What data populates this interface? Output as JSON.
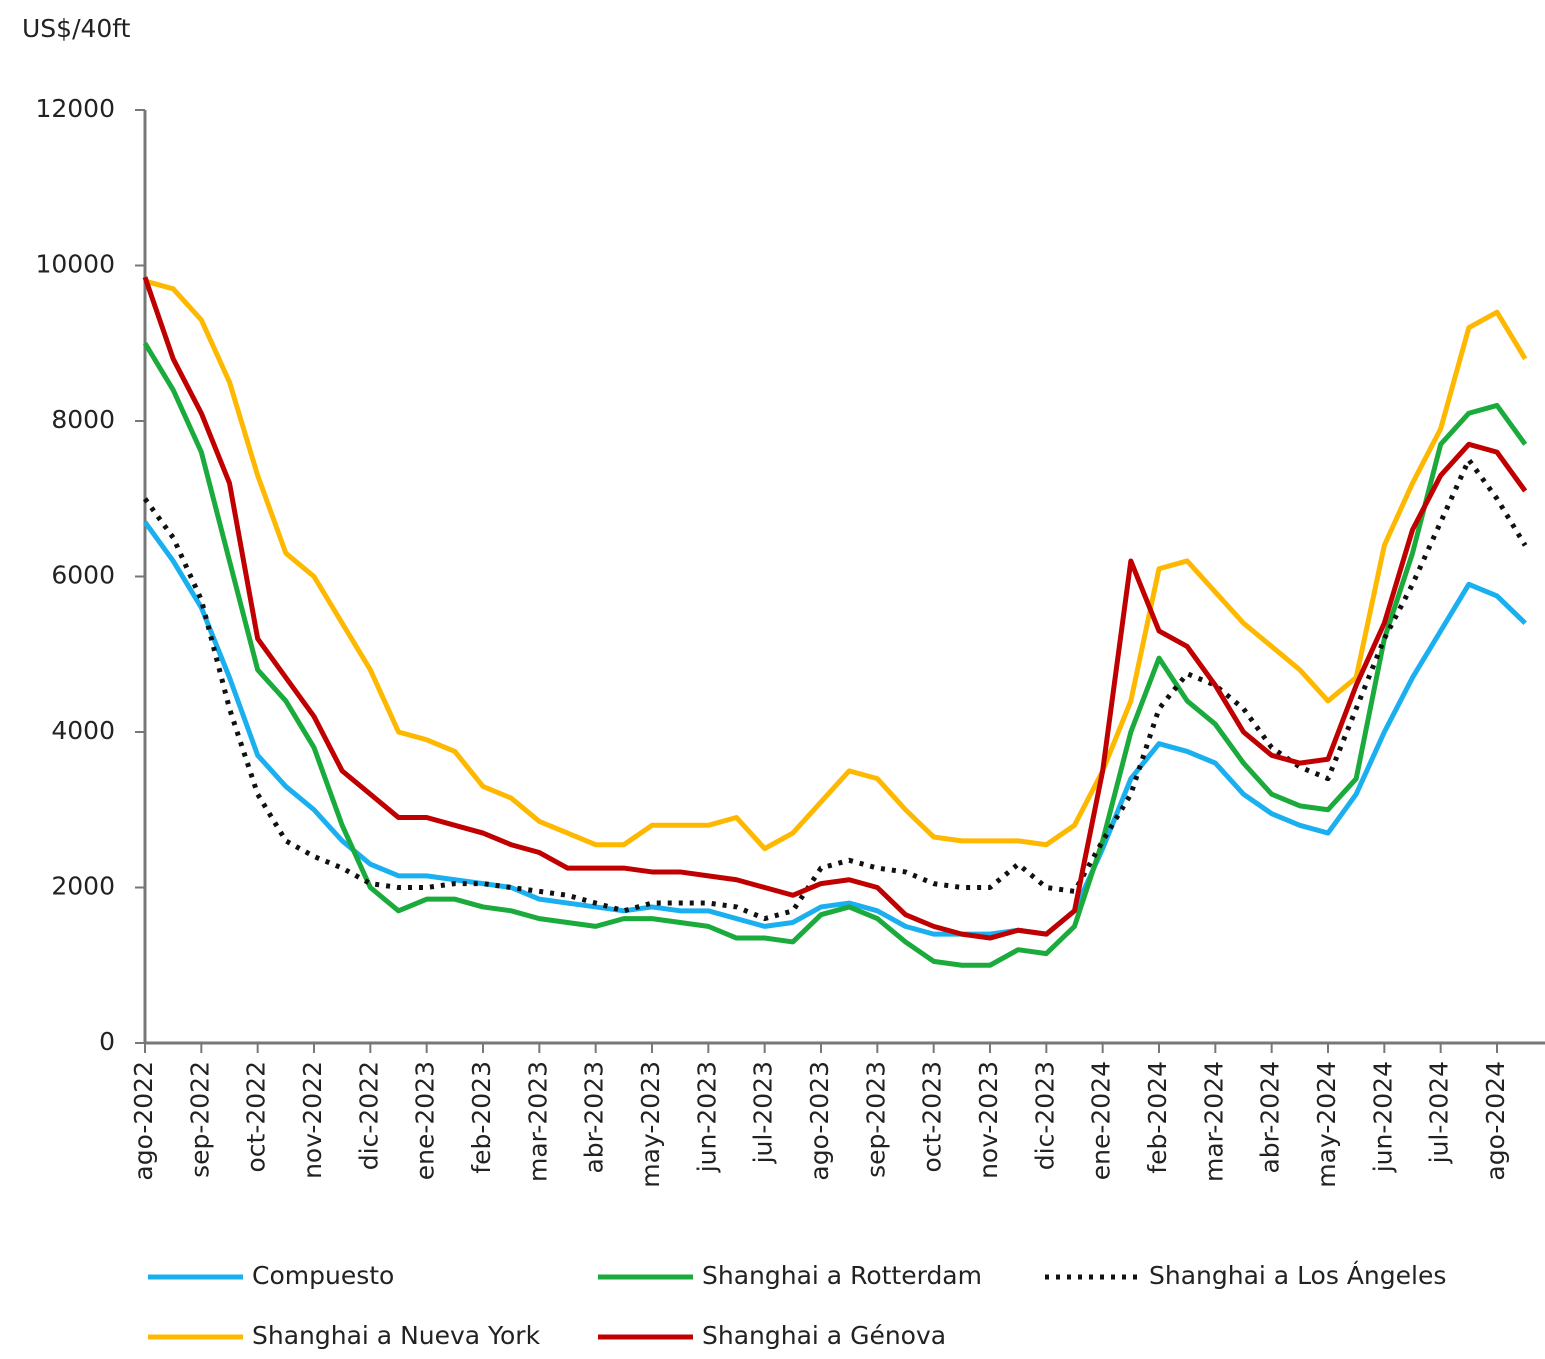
{
  "chart_data": {
    "type": "line",
    "ylabel": "US$/40ft",
    "categories": [
      "ago-2022",
      null,
      "sep-2022",
      null,
      "oct-2022",
      null,
      "nov-2022",
      null,
      "dic-2022",
      null,
      "ene-2023",
      null,
      "feb-2023",
      null,
      "mar-2023",
      null,
      "abr-2023",
      null,
      "may-2023",
      null,
      "jun-2023",
      null,
      "jul-2023",
      null,
      "ago-2023",
      null,
      "sep-2023",
      null,
      "oct-2023",
      null,
      "nov-2023",
      null,
      "dic-2023",
      null,
      "ene-2024",
      null,
      "feb-2024",
      null,
      "mar-2024",
      null,
      "abr-2024",
      null,
      "may-2024",
      null,
      "jun-2024",
      null,
      "jul-2024",
      null,
      "ago-2024",
      null
    ],
    "ylim": [
      0,
      12000
    ],
    "yticks": [
      0,
      2000,
      4000,
      6000,
      8000,
      10000,
      12000
    ],
    "grid": false,
    "series": [
      {
        "name": "Compuesto",
        "color": "#1ab0ef",
        "dashed": false,
        "values": [
          6700,
          6200,
          5600,
          4700,
          3700,
          3300,
          3000,
          2600,
          2300,
          2150,
          2150,
          2100,
          2050,
          2000,
          1850,
          1800,
          1750,
          1700,
          1750,
          1700,
          1700,
          1600,
          1500,
          1550,
          1750,
          1800,
          1700,
          1500,
          1400,
          1400,
          1400,
          1450,
          1400,
          1700,
          2500,
          3400,
          3850,
          3750,
          3600,
          3200,
          2950,
          2800,
          2700,
          3200,
          4000,
          4700,
          5300,
          5900,
          5750,
          5400
        ]
      },
      {
        "name": "Shanghai a Rotterdam",
        "color": "#1aab3c",
        "dashed": false,
        "values": [
          9000,
          8400,
          7600,
          6200,
          4800,
          4400,
          3800,
          2800,
          2000,
          1700,
          1850,
          1850,
          1750,
          1700,
          1600,
          1550,
          1500,
          1600,
          1600,
          1550,
          1500,
          1350,
          1350,
          1300,
          1650,
          1750,
          1600,
          1300,
          1050,
          1000,
          1000,
          1200,
          1150,
          1500,
          2600,
          4000,
          4950,
          4400,
          4100,
          3600,
          3200,
          3050,
          3000,
          3400,
          5200,
          6300,
          7700,
          8100,
          8200,
          7700
        ]
      },
      {
        "name": "Shanghai a Los Ángeles",
        "color": "#111111",
        "dashed": true,
        "values": [
          7000,
          6500,
          5700,
          4300,
          3200,
          2600,
          2400,
          2250,
          2050,
          2000,
          2000,
          2050,
          2050,
          2000,
          1950,
          1900,
          1800,
          1700,
          1800,
          1800,
          1800,
          1750,
          1600,
          1700,
          2250,
          2350,
          2250,
          2200,
          2050,
          2000,
          2000,
          2300,
          2000,
          1950,
          2600,
          3200,
          4300,
          4750,
          4600,
          4300,
          3800,
          3550,
          3400,
          4300,
          5200,
          5900,
          6700,
          7500,
          7000,
          6400
        ]
      },
      {
        "name": "Shanghai a Nueva York",
        "color": "#ffb800",
        "dashed": false,
        "values": [
          9800,
          9700,
          9300,
          8500,
          7300,
          6300,
          6000,
          5400,
          4800,
          4000,
          3900,
          3750,
          3300,
          3150,
          2850,
          2700,
          2550,
          2550,
          2800,
          2800,
          2800,
          2900,
          2500,
          2700,
          3100,
          3500,
          3400,
          3000,
          2650,
          2600,
          2600,
          2600,
          2550,
          2800,
          3500,
          4400,
          6100,
          6200,
          5800,
          5400,
          5100,
          4800,
          4400,
          4700,
          6400,
          7200,
          7900,
          9200,
          9400,
          8800
        ]
      },
      {
        "name": "Shanghai a Génova",
        "color": "#c00000",
        "dashed": false,
        "values": [
          9850,
          8800,
          8100,
          7200,
          5200,
          4700,
          4200,
          3500,
          3200,
          2900,
          2900,
          2800,
          2700,
          2550,
          2450,
          2250,
          2250,
          2250,
          2200,
          2200,
          2150,
          2100,
          2000,
          1900,
          2050,
          2100,
          2000,
          1650,
          1500,
          1400,
          1350,
          1450,
          1400,
          1700,
          3500,
          6200,
          5300,
          5100,
          4600,
          4000,
          3700,
          3600,
          3650,
          4600,
          5400,
          6600,
          7300,
          7700,
          7600,
          7100
        ]
      }
    ]
  }
}
